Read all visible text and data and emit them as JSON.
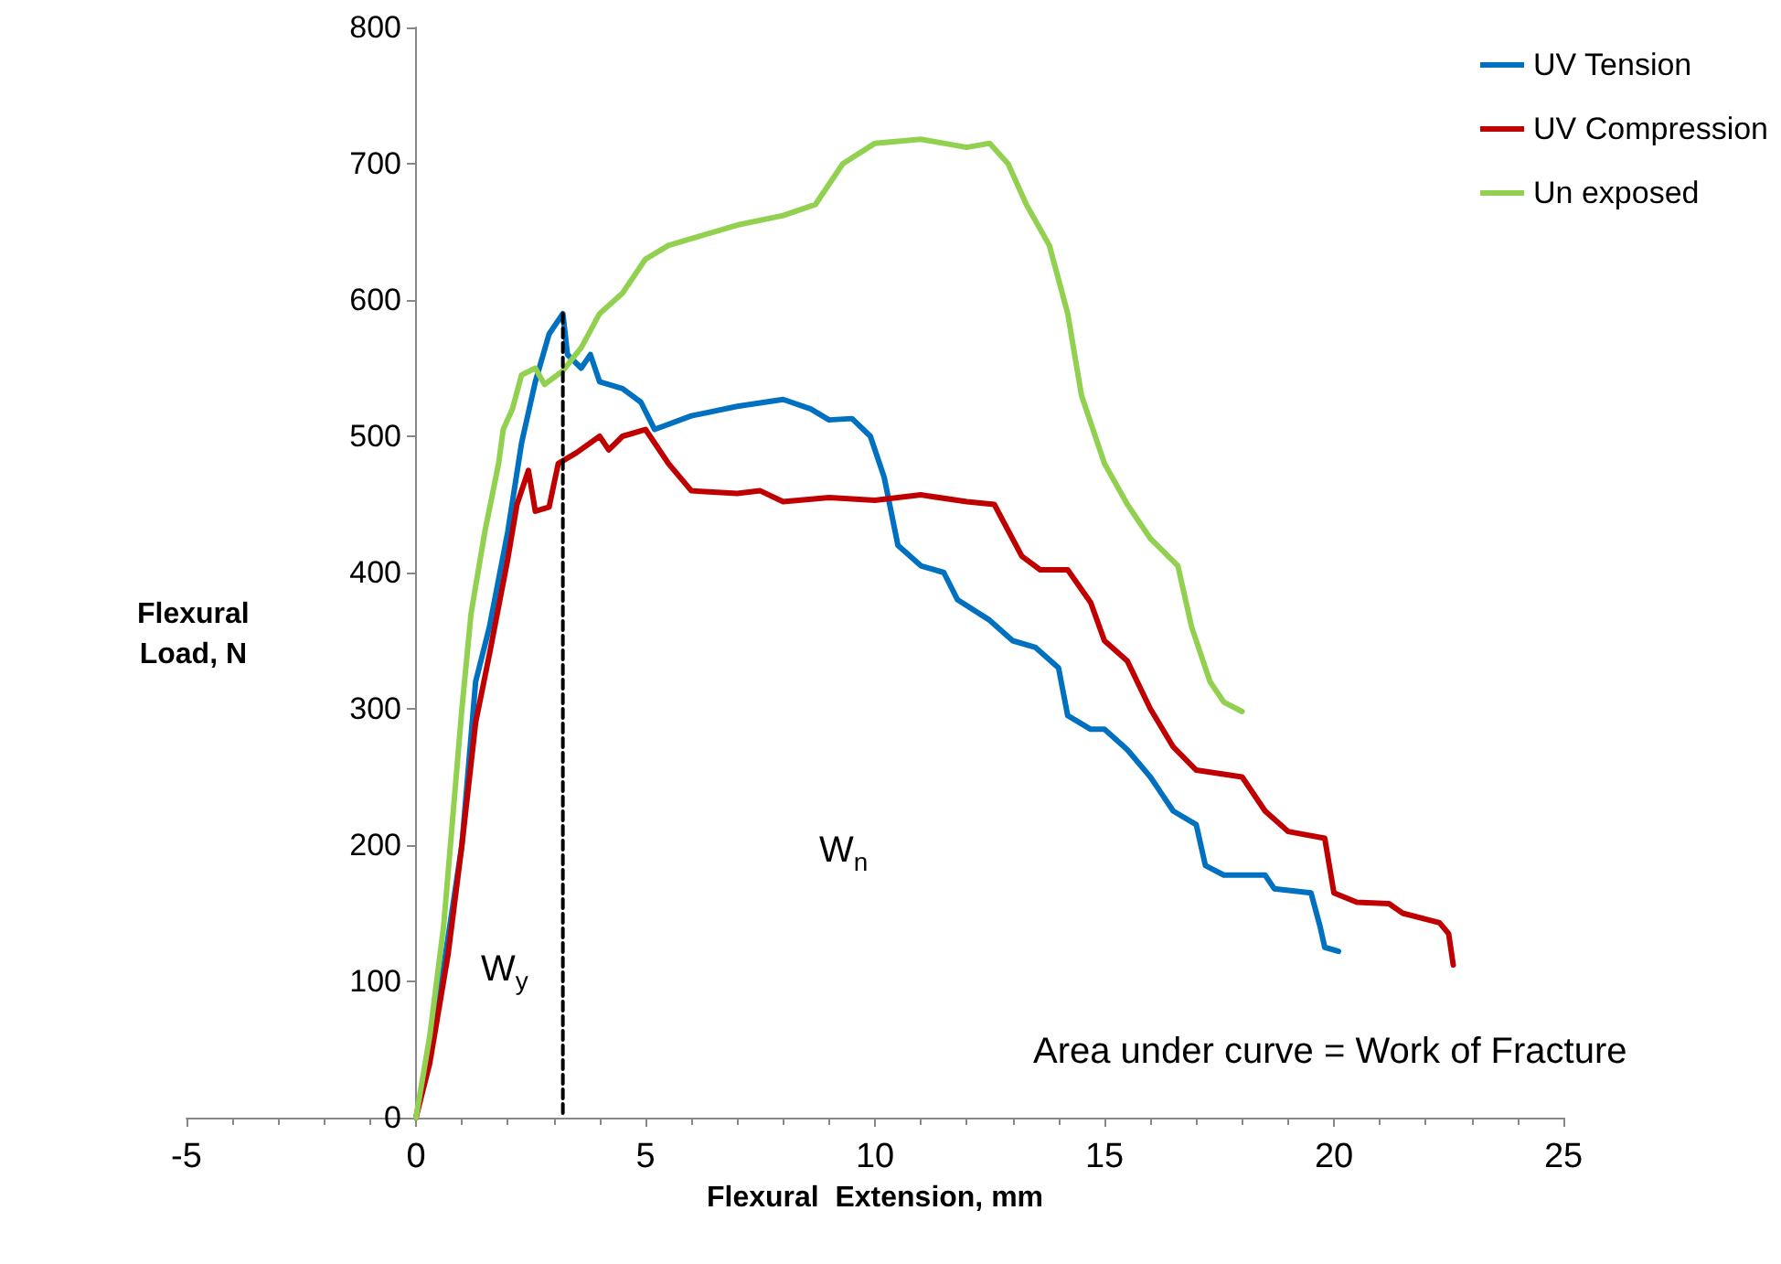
{
  "chart_data": {
    "type": "line",
    "xlabel": "Flexural  Extension, mm",
    "ylabel": "Flexural\nLoad, N",
    "xlim": [
      -5,
      25
    ],
    "xticks": [
      -5,
      0,
      5,
      10,
      15,
      20,
      25
    ],
    "ylim": [
      0,
      800
    ],
    "yticks": [
      0,
      100,
      200,
      300,
      400,
      500,
      600,
      700,
      800
    ],
    "grid": false,
    "legend": "top right",
    "marker": "none",
    "line_style": "solid",
    "annotations": [
      "W$_{y}$",
      "W$_{n}$",
      "Area under curve = Work of Fracture"
    ],
    "series": [
      {
        "name": "UV Tension",
        "color": "#0070c0",
        "x": [
          0,
          0.3,
          0.6,
          1,
          1.3,
          1.6,
          2,
          2.3,
          2.6,
          2.9,
          3.2,
          3.3,
          3.6,
          3.8,
          4,
          4.5,
          4.9,
          5.2,
          6,
          7,
          8,
          8.6,
          9,
          9.5,
          9.9,
          10.2,
          10.5,
          11,
          11.5,
          11.8,
          12.5,
          13,
          13.5,
          14,
          14.2,
          14.7,
          15,
          15.5,
          16,
          16.5,
          17,
          17.2,
          17.6,
          18.5,
          18.7,
          19.5,
          19.7,
          19.8,
          20.1
        ],
        "values": [
          0,
          50,
          110,
          200,
          320,
          360,
          430,
          495,
          540,
          575,
          590,
          560,
          550,
          560,
          540,
          535,
          525,
          505,
          515,
          522,
          527,
          520,
          512,
          513,
          500,
          470,
          420,
          405,
          400,
          380,
          365,
          350,
          345,
          330,
          295,
          285,
          285,
          270,
          250,
          225,
          215,
          185,
          178,
          178,
          168,
          165,
          140,
          125,
          122
        ]
      },
      {
        "name": "UV Compression",
        "color": "#c00000",
        "x": [
          0,
          0.3,
          0.7,
          1,
          1.3,
          1.6,
          2,
          2.2,
          2.45,
          2.6,
          2.9,
          3.1,
          3.5,
          4,
          4.2,
          4.5,
          5,
          5.5,
          6,
          7,
          7.5,
          8,
          9,
          10,
          11,
          12,
          12.6,
          13.2,
          13.6,
          14.2,
          14.7,
          15,
          15.5,
          16,
          16.5,
          17,
          18,
          18.5,
          19,
          19.8,
          20,
          20.5,
          21.2,
          21.5,
          22.3,
          22.5,
          22.6
        ],
        "values": [
          0,
          40,
          120,
          200,
          290,
          340,
          410,
          450,
          475,
          445,
          448,
          480,
          488,
          500,
          490,
          500,
          505,
          480,
          460,
          458,
          460,
          452,
          455,
          453,
          457,
          452,
          450,
          412,
          402,
          402,
          378,
          350,
          335,
          300,
          272,
          255,
          250,
          225,
          210,
          205,
          165,
          158,
          157,
          150,
          143,
          135,
          112
        ]
      },
      {
        "name": "Un exposed",
        "color": "#92d050",
        "x": [
          0,
          0.3,
          0.6,
          1,
          1.2,
          1.5,
          1.8,
          1.9,
          2.1,
          2.3,
          2.6,
          2.8,
          3.2,
          3.6,
          4,
          4.5,
          5,
          5.5,
          6,
          7,
          8,
          8.7,
          9.3,
          10,
          11,
          12,
          12.5,
          12.9,
          13.3,
          13.8,
          14.2,
          14.5,
          15,
          15.5,
          16,
          16.6,
          16.9,
          17.3,
          17.6,
          18
        ],
        "values": [
          0,
          60,
          140,
          300,
          370,
          430,
          480,
          505,
          520,
          545,
          550,
          538,
          548,
          565,
          590,
          605,
          630,
          640,
          645,
          655,
          662,
          670,
          700,
          715,
          718,
          712,
          715,
          700,
          670,
          640,
          590,
          530,
          480,
          450,
          425,
          405,
          360,
          320,
          305,
          298
        ]
      },
      {
        "color": "#000000",
        "line_style": "dashed",
        "x": [
          3.2,
          3.2
        ],
        "values": [
          590,
          0
        ]
      }
    ]
  }
}
